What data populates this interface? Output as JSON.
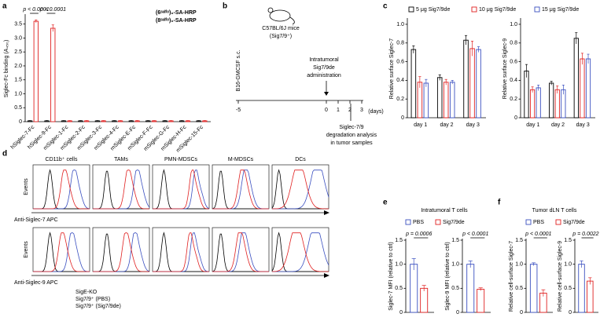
{
  "panel_labels": [
    "a",
    "b",
    "c",
    "d",
    "e",
    "f"
  ],
  "chart_data": [
    {
      "type": "bar",
      "y_label": "Siglec-Fc binding (A₄₅₀)",
      "categories": [
        "hSiglec-7-Fc",
        "hSiglec-9-Fc",
        "mSiglec-1-Fc",
        "mSiglec-2-Fc",
        "mSiglec-3-Fc",
        "mSiglec-4-Fc",
        "mSiglec-E-Fc",
        "mSiglec-F-Fc",
        "mSiglec-G-Fc",
        "mSiglec-H-Fc",
        "mSiglec-15-Fc"
      ],
      "series": [
        {
          "name": "(6ˢᵘˡᶠᵒ)₆-SA-HRP",
          "color": "#000000",
          "values": [
            0.03,
            0.03,
            0.03,
            0.03,
            0.03,
            0.03,
            0.03,
            0.03,
            0.03,
            0.03,
            0.03
          ],
          "errors": [
            0.01,
            0.01,
            0.01,
            0.01,
            0.01,
            0.01,
            0.01,
            0.01,
            0.01,
            0.01,
            0.01
          ]
        },
        {
          "name": "(8ˢᵘˡᶠᵒ)₆-SA-HRP",
          "color": "#e02020",
          "values": [
            3.6,
            3.35,
            0.03,
            0.03,
            0.03,
            0.03,
            0.03,
            0.03,
            0.03,
            0.03,
            0.03
          ],
          "errors": [
            0.05,
            0.12,
            0.01,
            0.01,
            0.01,
            0.01,
            0.01,
            0.01,
            0.01,
            0.01,
            0.01
          ]
        }
      ],
      "annotations": [
        "p < 0.0001",
        "p < 0.0001"
      ],
      "ylim": [
        0,
        3.8
      ],
      "yticks": [
        0,
        0.5,
        {
          "value": 1,
          "label": "1.0"
        },
        1.5,
        {
          "value": 2,
          "label": "2.0"
        },
        2.5,
        {
          "value": 3,
          "label": "3.0"
        },
        3.5
      ]
    },
    {
      "type": "bar",
      "y_label": "Relative surface Siglec-7",
      "categories": [
        "day 1",
        "day 2",
        "day 3"
      ],
      "series": [
        {
          "name": "5 μg Sig7/9de",
          "color": "#000000",
          "values": [
            0.73,
            0.43,
            0.83
          ],
          "errors": [
            0.04,
            0.03,
            0.05
          ]
        },
        {
          "name": "10 μg Sig7/9de",
          "color": "#e02020",
          "values": [
            0.38,
            0.38,
            0.74
          ],
          "errors": [
            0.06,
            0.03,
            0.08
          ]
        },
        {
          "name": "15 μg Sig7/9de",
          "color": "#3a4fc0",
          "values": [
            0.37,
            0.38,
            0.73
          ],
          "errors": [
            0.04,
            0.02,
            0.03
          ]
        }
      ],
      "ylim": [
        0,
        1.05
      ],
      "yticks": [
        0,
        0.2,
        0.4,
        0.6,
        0.8,
        {
          "value": 1,
          "label": "1.0"
        }
      ]
    },
    {
      "type": "bar",
      "y_label": "Relative surface Siglec-9",
      "categories": [
        "day 1",
        "day 2",
        "day 3"
      ],
      "series": [
        {
          "color": "#000000",
          "values": [
            0.5,
            0.37,
            0.85
          ],
          "errors": [
            0.07,
            0.02,
            0.06
          ]
        },
        {
          "color": "#e02020",
          "values": [
            0.3,
            0.3,
            0.63
          ],
          "errors": [
            0.03,
            0.04,
            0.06
          ]
        },
        {
          "color": "#3a4fc0",
          "values": [
            0.32,
            0.3,
            0.63
          ],
          "errors": [
            0.03,
            0.05,
            0.05
          ]
        }
      ],
      "ylim": [
        0,
        1.05
      ],
      "yticks": [
        0,
        0.2,
        0.4,
        0.6,
        0.8,
        {
          "value": 1,
          "label": "1.0"
        }
      ]
    },
    {
      "type": "bar",
      "y_label": "Siglec-7 MFI (relative to ctrl)",
      "series": [
        {
          "name": "PBS",
          "color": "#3a4fc0",
          "values": [
            1.0
          ],
          "errors": [
            0.12
          ]
        },
        {
          "name": "Sig7/9de",
          "color": "#e02020",
          "values": [
            0.5
          ],
          "errors": [
            0.06
          ]
        }
      ],
      "annotations": [
        "p = 0.0006"
      ],
      "ylim": [
        0,
        1.5
      ],
      "yticks": [
        0,
        0.5,
        {
          "value": 1,
          "label": "1.0"
        },
        1.5
      ]
    },
    {
      "type": "bar",
      "y_label": "Siglec-9 MFI (relative to ctrl)",
      "series": [
        {
          "color": "#3a4fc0",
          "values": [
            1.0
          ],
          "errors": [
            0.07
          ]
        },
        {
          "color": "#e02020",
          "values": [
            0.48
          ],
          "errors": [
            0.03
          ]
        }
      ],
      "annotations": [
        "p < 0.0001"
      ],
      "ylim": [
        0,
        1.5
      ],
      "yticks": [
        0,
        0.5,
        {
          "value": 1,
          "label": "1.0"
        },
        1.5
      ]
    },
    {
      "type": "bar",
      "y_label": "Relative cell-surface Siglec-7",
      "series": [
        {
          "name": "PBS",
          "color": "#3a4fc0",
          "values": [
            1.0
          ],
          "errors": [
            0.03
          ]
        },
        {
          "name": "Sig7/9de",
          "color": "#e02020",
          "values": [
            0.4
          ],
          "errors": [
            0.07
          ]
        }
      ],
      "annotations": [
        "p < 0.0001"
      ],
      "ylim": [
        0,
        1.5
      ],
      "yticks": [
        0,
        0.5,
        {
          "value": 1,
          "label": "1.0"
        },
        1.5
      ]
    },
    {
      "type": "bar",
      "y_label": "Relative cell-surface Siglec-9",
      "series": [
        {
          "color": "#3a4fc0",
          "values": [
            1.0
          ],
          "errors": [
            0.07
          ]
        },
        {
          "color": "#e02020",
          "values": [
            0.65
          ],
          "errors": [
            0.07
          ]
        }
      ],
      "annotations": [
        "p = 0.0022"
      ],
      "ylim": [
        0,
        1.5
      ],
      "yticks": [
        0,
        0.5,
        {
          "value": 1,
          "label": "1.0"
        },
        1.5
      ]
    }
  ],
  "diagram": {
    "mice": "C57BL/6J mice",
    "genotype": "(Sig7/9⁺)",
    "implant": "B16-GMCSF s.c.",
    "treatment": [
      "Intratumoral",
      "Sig7/9de",
      "administration"
    ],
    "timeline_ticks": [
      -5,
      0,
      1,
      2,
      3
    ],
    "timeline_unit": "(days)",
    "analysis": [
      "Siglec-7/9",
      "degradation analysis",
      "in tumor samples"
    ]
  },
  "flow": {
    "populations": [
      "CD11b⁺ cells",
      "TAMs",
      "PMN-MDSCs",
      "M-MDSCs",
      "DCs"
    ],
    "y_label": "Events",
    "x_labels": [
      "Anti-Siglec-7 APC",
      "Anti-Siglec-9 APC"
    ],
    "legend": [
      {
        "name": "SigE-KO",
        "color": "#000000"
      },
      {
        "name": "Sig7/9⁺ (PBS)",
        "color": "#3a4fc0"
      },
      {
        "name": "Sig7/9⁺ (Sig7/9de)",
        "color": "#e02020"
      }
    ]
  },
  "panel_titles": {
    "e": "Intratumoral T cells",
    "f": "Tumor dLN T cells"
  }
}
